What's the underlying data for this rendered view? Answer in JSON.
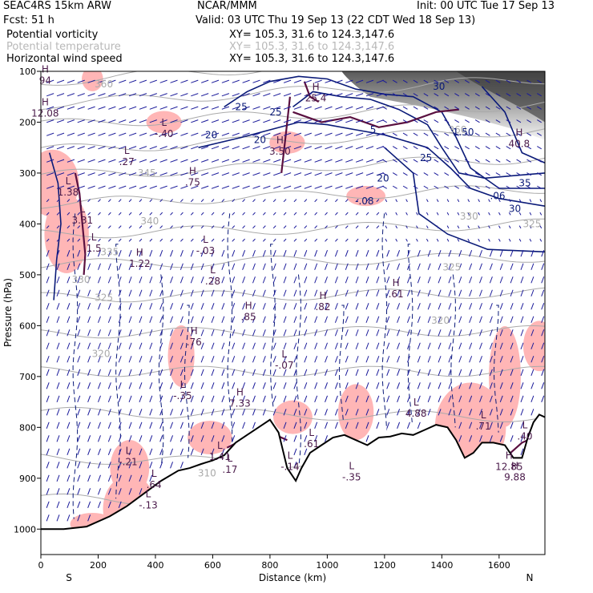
{
  "header": {
    "model": "SEAC4RS 15km ARW",
    "center": "NCAR/MMM",
    "init": "Init: 00 UTC Tue 17 Sep 13",
    "fcst": "Fcst:    51 h",
    "valid": "Valid: 03 UTC Thu 19 Sep 13 (22 CDT Wed 18 Sep 13)",
    "fields": [
      {
        "name": "Potential vorticity",
        "xy": "XY= 105.3, 31.6 to 124.3,147.6",
        "color": "#000000"
      },
      {
        "name": "Potential temperature",
        "xy": "XY= 105.3, 31.6 to 124.3,147.6",
        "color": "#b8b8b8"
      },
      {
        "name": "Horizontal wind speed",
        "xy": "XY= 105.3, 31.6 to 124.3,147.6",
        "color": "#000000"
      }
    ]
  },
  "colors": {
    "pv_shading": "#ffb6b6",
    "pv_contour": "#5a1040",
    "theta": "#aaaaaa",
    "wind_contour": "#0a1a78",
    "vectors": "#1a1a9a",
    "terrain": "#000000",
    "labels": "#4a1a4a",
    "jet_shading": "#555555"
  },
  "chart_data": {
    "type": "cross-section",
    "xlabel": "Distance (km)",
    "ylabel": "Pressure (hPa)",
    "xlim": [
      0,
      1760
    ],
    "ylim": [
      1050,
      100
    ],
    "x_ticks": [
      0,
      200,
      400,
      600,
      800,
      1000,
      1200,
      1400,
      1600
    ],
    "y_ticks": [
      100,
      200,
      300,
      400,
      500,
      600,
      700,
      800,
      900,
      1000
    ],
    "x_end_labels": {
      "left": "S",
      "right": "N"
    },
    "terrain": {
      "x": [
        0,
        80,
        160,
        240,
        300,
        360,
        420,
        480,
        520,
        560,
        600,
        640,
        680,
        720,
        760,
        800,
        830,
        860,
        890,
        910,
        940,
        980,
        1020,
        1060,
        1100,
        1140,
        1180,
        1220,
        1260,
        1300,
        1340,
        1380,
        1420,
        1450,
        1480,
        1510,
        1540,
        1580,
        1620,
        1650,
        1680,
        1700,
        1720,
        1740,
        1760
      ],
      "p": [
        1000,
        1000,
        995,
        975,
        955,
        930,
        905,
        885,
        880,
        872,
        865,
        855,
        830,
        815,
        800,
        785,
        810,
        880,
        905,
        880,
        850,
        835,
        820,
        815,
        825,
        835,
        820,
        818,
        812,
        815,
        805,
        795,
        800,
        825,
        860,
        850,
        830,
        830,
        835,
        860,
        860,
        820,
        790,
        775,
        780
      ]
    },
    "pv_highs_lows": [
      {
        "type": "H",
        "value": "94",
        "x": 15,
        "p": 110
      },
      {
        "type": "H",
        "value": "12.08",
        "x": 15,
        "p": 175
      },
      {
        "type": "L",
        "value": "-.40",
        "x": 430,
        "p": 215
      },
      {
        "type": "L",
        "value": ".27",
        "x": 300,
        "p": 270
      },
      {
        "type": "H",
        "value": ".75",
        "x": 530,
        "p": 310
      },
      {
        "type": "L",
        "value": "1.38",
        "x": 95,
        "p": 330
      },
      {
        "type": "L",
        "value": "3.31",
        "x": 145,
        "p": 385
      },
      {
        "type": "L",
        "value": "1.5",
        "x": 185,
        "p": 440
      },
      {
        "type": "H",
        "value": "1.22",
        "x": 345,
        "p": 470
      },
      {
        "type": "L",
        "value": "-.03",
        "x": 575,
        "p": 445
      },
      {
        "type": "L",
        "value": ".28",
        "x": 600,
        "p": 505
      },
      {
        "type": "H",
        "value": ".85",
        "x": 725,
        "p": 575
      },
      {
        "type": "H",
        "value": ".82",
        "x": 985,
        "p": 555
      },
      {
        "type": "H",
        "value": ".61",
        "x": 1240,
        "p": 530
      },
      {
        "type": "H",
        "value": ".76",
        "x": 535,
        "p": 625
      },
      {
        "type": "L",
        "value": "-.07",
        "x": 850,
        "p": 670
      },
      {
        "type": "L",
        "value": "-.35",
        "x": 495,
        "p": 730
      },
      {
        "type": "H",
        "value": "7.33",
        "x": 695,
        "p": 745
      },
      {
        "type": "L",
        "value": "4.88",
        "x": 1310,
        "p": 765
      },
      {
        "type": "L",
        "value": ".71",
        "x": 1545,
        "p": 790
      },
      {
        "type": "L",
        "value": ".40",
        "x": 1690,
        "p": 810
      },
      {
        "type": "L",
        "value": ".61",
        "x": 945,
        "p": 825
      },
      {
        "type": "L",
        "value": "-.21",
        "x": 305,
        "p": 860
      },
      {
        "type": "L",
        "value": "1.41",
        "x": 625,
        "p": 850
      },
      {
        "type": "L",
        "value": ".17",
        "x": 660,
        "p": 875
      },
      {
        "type": "L",
        "value": "-.14",
        "x": 870,
        "p": 870
      },
      {
        "type": "L",
        "value": "-.35",
        "x": 1085,
        "p": 890
      },
      {
        "type": "L",
        "value": ".64",
        "x": 395,
        "p": 905
      },
      {
        "type": "L",
        "value": "-.13",
        "x": 375,
        "p": 945
      },
      {
        "type": "H",
        "value": "12.85",
        "x": 1635,
        "p": 870
      },
      {
        "type": "H",
        "value": "9.88",
        "x": 1655,
        "p": 890
      },
      {
        "type": "H",
        "value": "3.50",
        "x": 835,
        "p": 250
      },
      {
        "type": "H",
        "value": "25.4",
        "x": 960,
        "p": 145
      },
      {
        "type": "H",
        "value": "40.8",
        "x": 1670,
        "p": 235
      }
    ],
    "theta_labels": [
      {
        "value": "360",
        "x": 220,
        "p": 125
      },
      {
        "value": "345",
        "x": 370,
        "p": 300
      },
      {
        "value": "340",
        "x": 380,
        "p": 395
      },
      {
        "value": "335",
        "x": 240,
        "p": 455
      },
      {
        "value": "330",
        "x": 140,
        "p": 510
      },
      {
        "value": "325",
        "x": 220,
        "p": 545
      },
      {
        "value": "320",
        "x": 210,
        "p": 655
      },
      {
        "value": "320",
        "x": 1395,
        "p": 590
      },
      {
        "value": "325",
        "x": 1435,
        "p": 485
      },
      {
        "value": "330",
        "x": 1495,
        "p": 385
      },
      {
        "value": "325",
        "x": 1715,
        "p": 400
      },
      {
        "value": "310",
        "x": 580,
        "p": 890
      },
      {
        "value": "360",
        "x": 1455,
        "p": 215
      }
    ],
    "wind_labels": [
      {
        "value": "25",
        "x": 700,
        "p": 170
      },
      {
        "value": "20",
        "x": 595,
        "p": 225
      },
      {
        "value": "25",
        "x": 820,
        "p": 180
      },
      {
        "value": "20",
        "x": 765,
        "p": 235
      },
      {
        "value": "20",
        "x": 1195,
        "p": 310
      },
      {
        "value": "25",
        "x": 1345,
        "p": 270
      },
      {
        "value": "30",
        "x": 1390,
        "p": 130
      },
      {
        "value": "35",
        "x": 1690,
        "p": 320
      },
      {
        "value": "30",
        "x": 1655,
        "p": 370
      },
      {
        "value": "1.50",
        "x": 1475,
        "p": 220
      },
      {
        "value": "5",
        "x": 1160,
        "p": 215
      },
      {
        "value": "-.08",
        "x": 1130,
        "p": 355
      },
      {
        "value": ".06",
        "x": 1595,
        "p": 345
      }
    ]
  }
}
